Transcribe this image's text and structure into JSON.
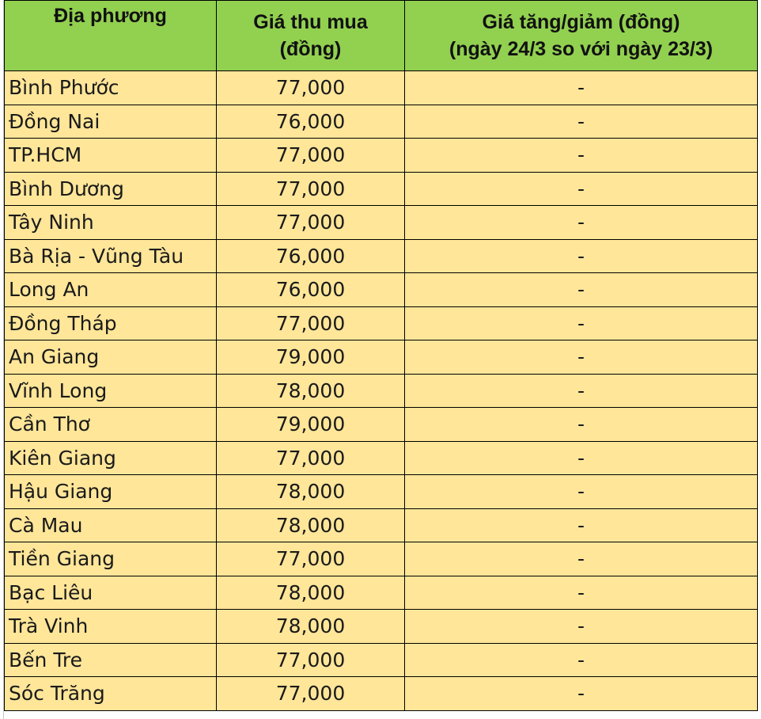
{
  "table": {
    "headers": [
      "Địa phương",
      "Giá thu mua (đồng)",
      "Giá tăng/giảm (đồng) (ngày 24/3 so với ngày 23/3)"
    ],
    "header_lines": [
      [
        "Địa phương"
      ],
      [
        "Giá thu mua",
        "(đồng)"
      ],
      [
        "Giá tăng/giảm (đồng)",
        "(ngày 24/3 so với ngày 23/3)"
      ]
    ],
    "rows": [
      [
        "Bình Phước",
        "77,000",
        "-"
      ],
      [
        "Đồng Nai",
        "76,000",
        "-"
      ],
      [
        "TP.HCM",
        "77,000",
        "-"
      ],
      [
        "Bình Dương",
        "77,000",
        "-"
      ],
      [
        "Tây Ninh",
        "77,000",
        "-"
      ],
      [
        "Bà Rịa - Vũng Tàu",
        "76,000",
        "-"
      ],
      [
        "Long An",
        "76,000",
        "-"
      ],
      [
        "Đồng Tháp",
        "77,000",
        "-"
      ],
      [
        "An Giang",
        "79,000",
        "-"
      ],
      [
        "Vĩnh Long",
        "78,000",
        "-"
      ],
      [
        "Cần Thơ",
        "79,000",
        "-"
      ],
      [
        "Kiên Giang",
        "77,000",
        "-"
      ],
      [
        "Hậu Giang",
        "78,000",
        "-"
      ],
      [
        "Cà Mau",
        "78,000",
        "-"
      ],
      [
        "Tiền Giang",
        "77,000",
        "-"
      ],
      [
        "Bạc Liêu",
        "78,000",
        "-"
      ],
      [
        "Trà Vinh",
        "78,000",
        "-"
      ],
      [
        "Bến Tre",
        "77,000",
        "-"
      ],
      [
        "Sóc Trăng",
        "77,000",
        "-"
      ]
    ]
  },
  "colors": {
    "header_bg": "#92d050",
    "cell_bg": "#ffe699",
    "border": "#000000"
  }
}
